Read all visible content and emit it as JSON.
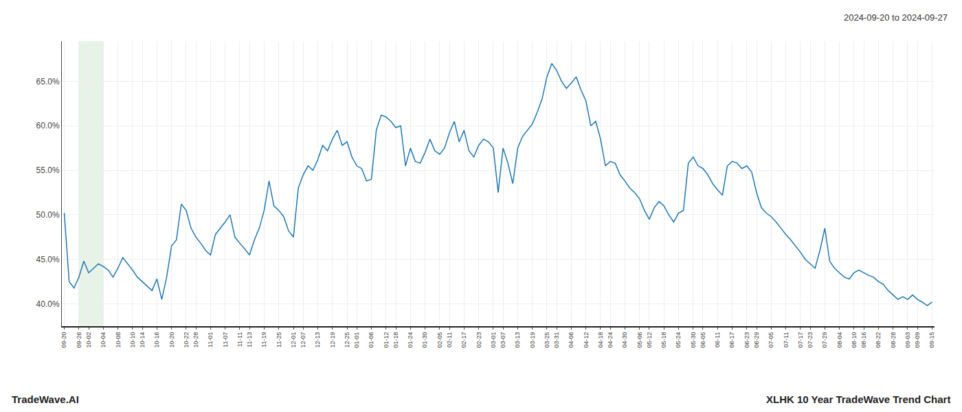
{
  "chart_data": {
    "type": "line",
    "title": "2024-09-20 to 2024-09-27",
    "annotations": [
      "TradeWave.AI",
      "XLHK 10 Year TradeWave Trend Chart"
    ],
    "color": "#1f77b4",
    "grid": true,
    "highlight": {
      "from": "09-26",
      "to": "10-04",
      "color": "#d6ead6"
    },
    "ylim": [
      37.5,
      69.5
    ],
    "yticks": [
      {
        "value": 40.0,
        "label": "40.0%"
      },
      {
        "value": 45.0,
        "label": "45.0%"
      },
      {
        "value": 50.0,
        "label": "50.0%"
      },
      {
        "value": 55.0,
        "label": "55.0%"
      },
      {
        "value": 60.0,
        "label": "60.0%"
      },
      {
        "value": 65.0,
        "label": "65.0%"
      }
    ],
    "categories": [
      "09-20",
      null,
      null,
      "09-26",
      null,
      "10-02",
      null,
      null,
      "10-04",
      null,
      null,
      "10-08",
      null,
      null,
      "10-10",
      null,
      "10-14",
      null,
      null,
      "10-16",
      null,
      null,
      "10-20",
      null,
      null,
      "10-22",
      null,
      "10-28",
      null,
      null,
      "11-01",
      null,
      null,
      "11-07",
      null,
      null,
      "11-11",
      null,
      "11-13",
      null,
      null,
      "11-19",
      null,
      null,
      "11-25",
      null,
      null,
      "12-01",
      null,
      "12-07",
      null,
      null,
      "12-13",
      null,
      null,
      "12-19",
      null,
      null,
      "12-25",
      null,
      "01-01",
      null,
      null,
      "01-06",
      null,
      null,
      "01-12",
      null,
      "01-18",
      null,
      null,
      "01-24",
      null,
      null,
      "01-30",
      null,
      null,
      "02-05",
      null,
      "02-11",
      null,
      null,
      "02-17",
      null,
      null,
      "02-23",
      null,
      null,
      "03-01",
      null,
      "03-07",
      null,
      null,
      "03-13",
      null,
      null,
      "03-19",
      null,
      null,
      "03-25",
      null,
      "03-31",
      null,
      null,
      "04-06",
      null,
      null,
      "04-12",
      null,
      null,
      "04-18",
      null,
      "04-24",
      null,
      null,
      "04-30",
      null,
      null,
      "05-06",
      null,
      "05-12",
      null,
      null,
      "05-18",
      null,
      null,
      "05-24",
      null,
      null,
      "05-30",
      null,
      "06-05",
      null,
      null,
      "06-11",
      null,
      null,
      "06-17",
      null,
      null,
      "06-23",
      null,
      "06-29",
      null,
      null,
      "07-05",
      null,
      null,
      "07-11",
      null,
      null,
      "07-17",
      null,
      "07-23",
      null,
      null,
      "07-29",
      null,
      null,
      "08-04",
      null,
      null,
      "08-10",
      null,
      "08-16",
      null,
      null,
      "08-22",
      null,
      null,
      "08-28",
      null,
      null,
      "09-03",
      null,
      "09-09",
      null,
      null,
      "09-15"
    ],
    "values": [
      50.2,
      42.5,
      41.8,
      43.0,
      44.8,
      43.5,
      44.0,
      44.5,
      44.2,
      43.8,
      43.0,
      44.0,
      45.2,
      44.5,
      43.8,
      43.0,
      42.5,
      42.0,
      41.5,
      42.8,
      40.5,
      43.0,
      46.5,
      47.2,
      51.2,
      50.5,
      48.5,
      47.5,
      46.8,
      46.0,
      45.5,
      47.8,
      48.5,
      49.2,
      50.0,
      47.5,
      46.8,
      46.2,
      45.5,
      47.2,
      48.5,
      50.5,
      53.8,
      51.0,
      50.5,
      49.8,
      48.2,
      47.5,
      53.0,
      54.5,
      55.5,
      55.0,
      56.2,
      57.8,
      57.2,
      58.5,
      59.5,
      57.8,
      58.2,
      56.5,
      55.5,
      55.2,
      53.8,
      54.0,
      59.5,
      61.2,
      61.0,
      60.5,
      59.8,
      60.0,
      55.5,
      57.5,
      56.0,
      55.8,
      57.0,
      58.5,
      57.2,
      56.8,
      57.5,
      59.2,
      60.5,
      58.2,
      59.5,
      57.2,
      56.5,
      57.8,
      58.5,
      58.2,
      57.5,
      52.5,
      57.5,
      55.8,
      53.5,
      57.5,
      58.8,
      59.5,
      60.2,
      61.5,
      63.0,
      65.5,
      67.0,
      66.2,
      65.0,
      64.2,
      64.8,
      65.5,
      64.0,
      62.8,
      60.0,
      60.5,
      58.5,
      55.5,
      56.0,
      55.8,
      54.5,
      53.8,
      53.0,
      52.5,
      51.8,
      50.5,
      49.5,
      50.8,
      51.5,
      51.0,
      50.0,
      49.2,
      50.2,
      50.5,
      55.8,
      56.5,
      55.5,
      55.2,
      54.5,
      53.5,
      52.8,
      52.2,
      55.5,
      56.0,
      55.8,
      55.2,
      55.5,
      54.8,
      52.5,
      50.8,
      50.2,
      49.8,
      49.2,
      48.5,
      47.8,
      47.2,
      46.5,
      45.8,
      45.0,
      44.5,
      44.0,
      46.0,
      48.5,
      44.8,
      44.0,
      43.5,
      43.0,
      42.8,
      43.5,
      43.8,
      43.5,
      43.2,
      43.0,
      42.5,
      42.2,
      41.5,
      41.0,
      40.5,
      40.8,
      40.5,
      41.0,
      40.5,
      40.2,
      39.8,
      40.2
    ]
  }
}
